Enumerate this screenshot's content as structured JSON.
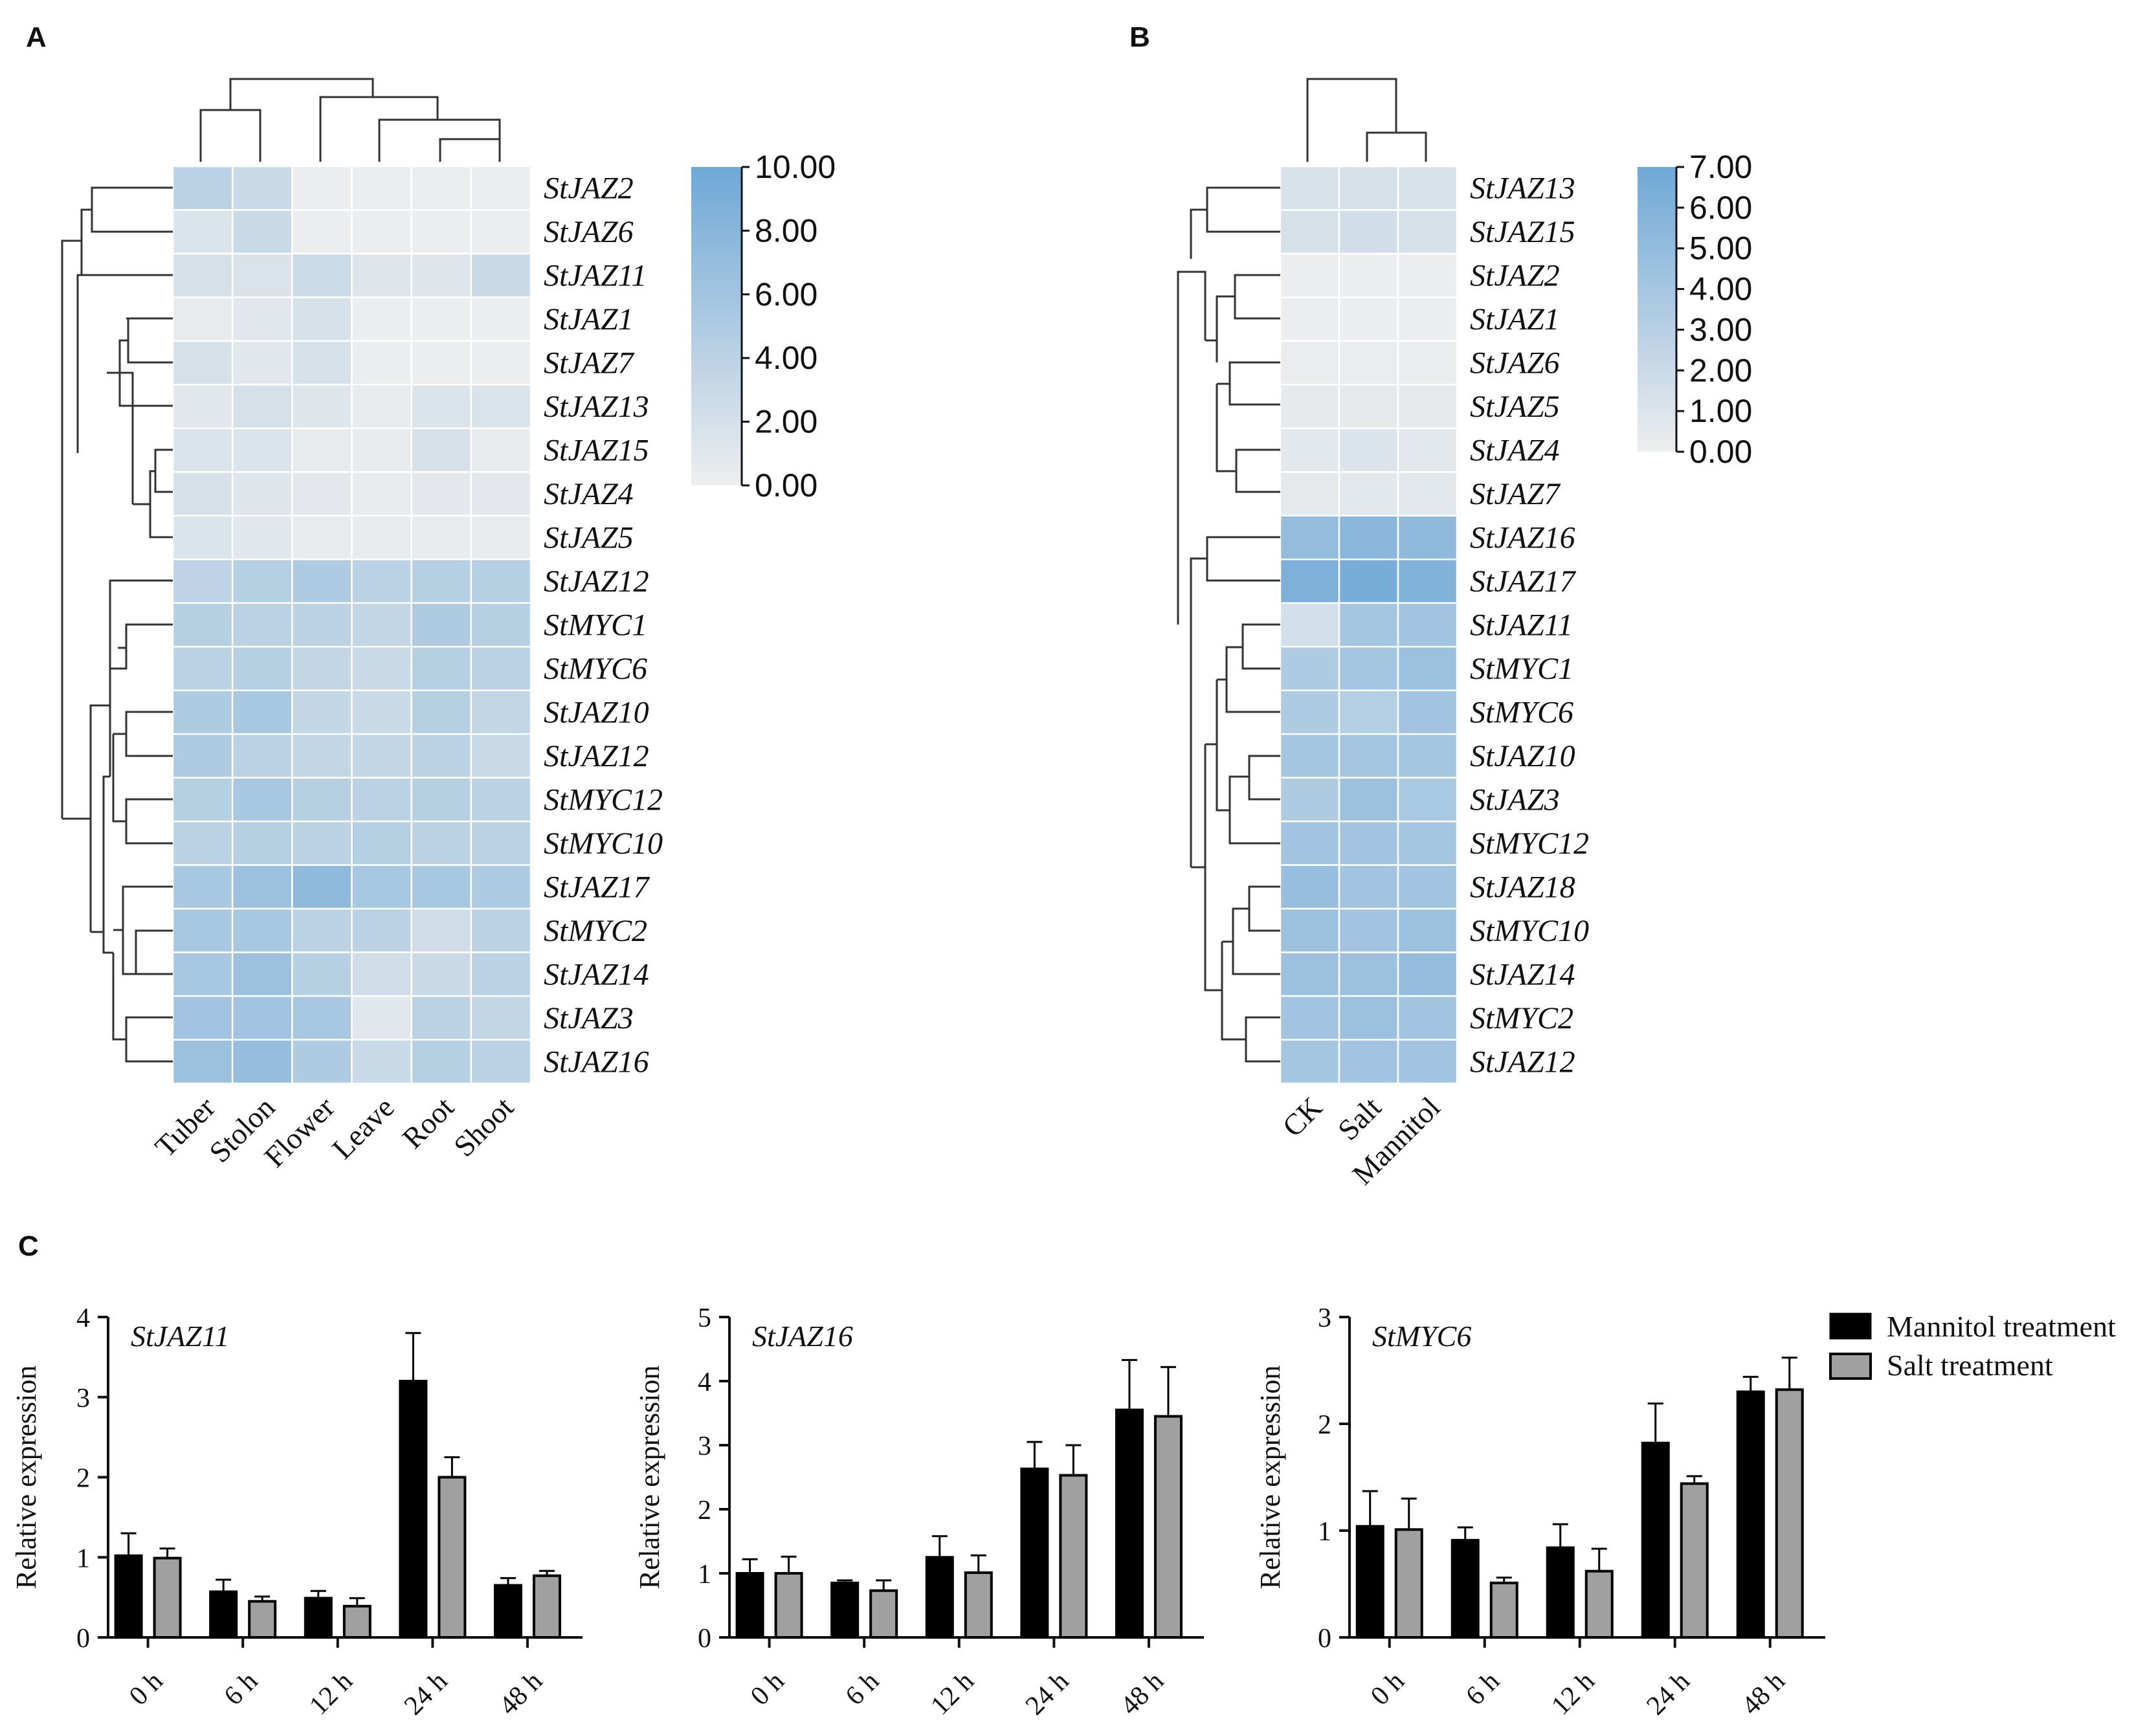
{
  "panels": {
    "a": "A",
    "b": "B",
    "c": "C"
  },
  "chart_data": [
    {
      "type": "heatmap",
      "id": "A",
      "columns": [
        "Tuber",
        "Stolon",
        "Flower",
        "Leave",
        "Root",
        "Shoot"
      ],
      "rows": [
        "StJAZ2",
        "StJAZ6",
        "StJAZ11",
        "StJAZ1",
        "StJAZ7",
        "StJAZ13",
        "StJAZ15",
        "StJAZ4",
        "StJAZ5",
        "StJAZ12",
        "StMYC1",
        "StMYC6",
        "StJAZ10",
        "StJAZ12",
        "StMYC12",
        "StMYC10",
        "StJAZ17",
        "StMYC2",
        "StJAZ14",
        "StJAZ3",
        "StJAZ16"
      ],
      "values": [
        [
          4.0,
          3.0,
          0.2,
          0.2,
          0.2,
          0.2
        ],
        [
          1.5,
          3.0,
          0.2,
          0.2,
          0.2,
          0.2
        ],
        [
          2.0,
          1.6,
          2.8,
          1.2,
          1.2,
          3.0
        ],
        [
          0.5,
          1.0,
          1.8,
          0.2,
          0.2,
          0.2
        ],
        [
          2.0,
          1.0,
          1.8,
          0.2,
          0.2,
          0.2
        ],
        [
          1.0,
          2.0,
          1.2,
          0.5,
          1.5,
          1.6
        ],
        [
          1.5,
          1.5,
          0.5,
          0.5,
          2.0,
          0.5
        ],
        [
          2.0,
          1.2,
          0.8,
          0.5,
          0.8,
          0.8
        ],
        [
          1.5,
          1.0,
          0.5,
          0.5,
          0.5,
          0.5
        ],
        [
          3.8,
          4.5,
          5.0,
          4.0,
          4.5,
          4.5
        ],
        [
          4.5,
          4.0,
          4.0,
          3.5,
          5.0,
          4.5
        ],
        [
          4.0,
          4.5,
          3.5,
          3.0,
          4.5,
          4.0
        ],
        [
          5.0,
          5.5,
          3.5,
          3.0,
          4.5,
          3.5
        ],
        [
          5.0,
          4.0,
          3.5,
          3.5,
          4.0,
          3.0
        ],
        [
          4.5,
          5.5,
          4.5,
          4.0,
          4.5,
          4.0
        ],
        [
          4.0,
          4.5,
          4.0,
          4.5,
          4.0,
          4.0
        ],
        [
          5.5,
          6.5,
          7.5,
          5.5,
          5.5,
          5.0
        ],
        [
          5.5,
          5.5,
          4.0,
          4.0,
          2.5,
          4.0
        ],
        [
          5.5,
          6.5,
          4.5,
          2.5,
          3.0,
          4.0
        ],
        [
          6.0,
          6.0,
          5.5,
          1.0,
          4.0,
          3.5
        ],
        [
          6.5,
          7.0,
          5.0,
          3.0,
          4.5,
          4.0
        ]
      ],
      "scale_min": 0,
      "scale_max": 10,
      "scale_labels": [
        "10.00",
        "8.00",
        "6.00",
        "4.00",
        "2.00",
        "0.00"
      ]
    },
    {
      "type": "heatmap",
      "id": "B",
      "columns": [
        "CK",
        "Salt",
        "Mannitol"
      ],
      "rows": [
        "StJAZ13",
        "StJAZ15",
        "StJAZ2",
        "StJAZ1",
        "StJAZ6",
        "StJAZ5",
        "StJAZ4",
        "StJAZ7",
        "StJAZ16",
        "StJAZ17",
        "StJAZ11",
        "StMYC1",
        "StMYC6",
        "StJAZ10",
        "StJAZ3",
        "StMYC12",
        "StJAZ18",
        "StMYC10",
        "StJAZ14",
        "StMYC2",
        "StJAZ12"
      ],
      "values": [
        [
          1.2,
          1.4,
          1.2
        ],
        [
          1.4,
          1.6,
          1.4
        ],
        [
          0.1,
          0.1,
          0.1
        ],
        [
          0.1,
          0.1,
          0.1
        ],
        [
          0.2,
          0.2,
          0.2
        ],
        [
          0.4,
          0.5,
          0.4
        ],
        [
          0.6,
          1.0,
          0.6
        ],
        [
          0.5,
          0.6,
          0.6
        ],
        [
          5.0,
          5.5,
          5.2
        ],
        [
          6.2,
          6.5,
          6.0
        ],
        [
          1.5,
          4.0,
          4.2
        ],
        [
          3.5,
          4.0,
          4.5
        ],
        [
          3.5,
          3.2,
          4.2
        ],
        [
          4.0,
          4.0,
          4.0
        ],
        [
          3.5,
          4.5,
          3.8
        ],
        [
          4.2,
          4.2,
          4.0
        ],
        [
          4.8,
          4.2,
          4.2
        ],
        [
          4.5,
          4.2,
          4.5
        ],
        [
          4.5,
          4.5,
          5.0
        ],
        [
          4.2,
          4.5,
          4.2
        ],
        [
          4.0,
          4.2,
          4.2
        ]
      ],
      "scale_min": 0,
      "scale_max": 7,
      "scale_labels": [
        "7.00",
        "6.00",
        "5.00",
        "4.00",
        "3.00",
        "2.00",
        "1.00",
        "0.00"
      ]
    },
    {
      "type": "bar",
      "id": "C1",
      "title": "StJAZ11",
      "ylabel": "Relative expression",
      "categories": [
        "0 h",
        "6 h",
        "12 h",
        "24 h",
        "48 h"
      ],
      "ylim": [
        0,
        4
      ],
      "yticks": [
        "0",
        "1",
        "2",
        "3",
        "4"
      ],
      "series": [
        {
          "name": "Mannitol treatment",
          "values": [
            1.02,
            0.57,
            0.49,
            3.2,
            0.65
          ],
          "errors": [
            0.28,
            0.15,
            0.09,
            0.6,
            0.09
          ]
        },
        {
          "name": "Salt treatment",
          "values": [
            0.99,
            0.45,
            0.39,
            2.0,
            0.77
          ],
          "errors": [
            0.12,
            0.06,
            0.1,
            0.25,
            0.06
          ]
        }
      ]
    },
    {
      "type": "bar",
      "id": "C2",
      "title": "StJAZ16",
      "ylabel": "Relative expression",
      "categories": [
        "0 h",
        "6 h",
        "12 h",
        "24 h",
        "48 h"
      ],
      "ylim": [
        0,
        5
      ],
      "yticks": [
        "0",
        "1",
        "2",
        "3",
        "4",
        "5"
      ],
      "series": [
        {
          "name": "Mannitol treatment",
          "values": [
            1.0,
            0.85,
            1.25,
            2.63,
            3.55
          ],
          "errors": [
            0.22,
            0.04,
            0.33,
            0.42,
            0.78
          ]
        },
        {
          "name": "Salt treatment",
          "values": [
            1.0,
            0.73,
            1.01,
            2.53,
            3.45
          ],
          "errors": [
            0.26,
            0.16,
            0.27,
            0.47,
            0.77
          ]
        }
      ]
    },
    {
      "type": "bar",
      "id": "C3",
      "title": "StMYC6",
      "ylabel": "Relative expression",
      "categories": [
        "0 h",
        "6 h",
        "12 h",
        "24 h",
        "48 h"
      ],
      "ylim": [
        0,
        3
      ],
      "yticks": [
        "0",
        "1",
        "2",
        "3"
      ],
      "series": [
        {
          "name": "Mannitol treatment",
          "values": [
            1.04,
            0.91,
            0.84,
            1.82,
            2.3
          ],
          "errors": [
            0.33,
            0.12,
            0.22,
            0.37,
            0.14
          ]
        },
        {
          "name": "Salt treatment",
          "values": [
            1.01,
            0.51,
            0.62,
            1.44,
            2.32
          ],
          "errors": [
            0.29,
            0.05,
            0.21,
            0.07,
            0.3
          ]
        }
      ]
    }
  ],
  "legend": {
    "mannitol": "Mannitol treatment",
    "salt": "Salt treatment"
  },
  "colors": {
    "high": "#6fa8d6",
    "low": "#eeeeee",
    "mannitol": "#000000",
    "salt": "#a0a0a0"
  }
}
